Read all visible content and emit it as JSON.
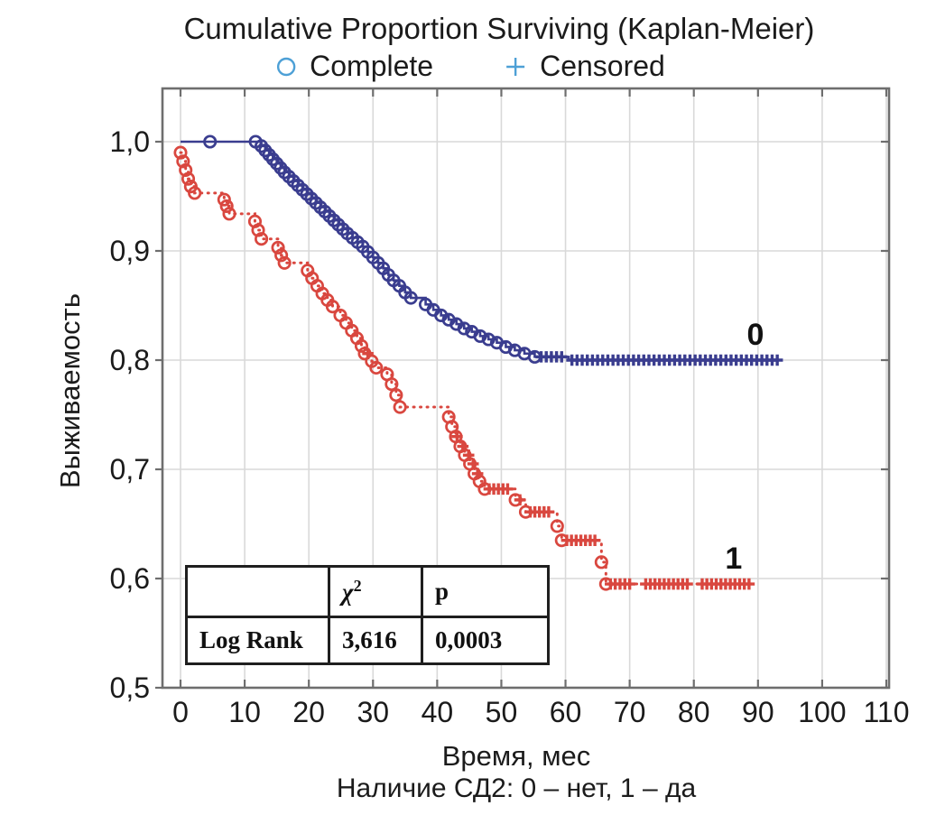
{
  "page": {
    "background": "#ffffff"
  },
  "header": {
    "title": "Cumulative Proportion Surviving (Kaplan-Meier)",
    "legend_symbol_color": "#4da0d6"
  },
  "chart_data": {
    "type": "line",
    "subtype": "kaplan-meier-step-function",
    "title": "Cumulative Proportion Surviving (Kaplan-Meier)",
    "xlabel": "Время, мес",
    "ylabel": "Выживаемость",
    "caption": "Наличие СД2: 0 – нет, 1 – да",
    "legend": [
      {
        "symbol": "circle",
        "label": "Complete"
      },
      {
        "symbol": "plus",
        "label": "Censored"
      }
    ],
    "grid": true,
    "xlim": [
      -2.8,
      110.4
    ],
    "ylim": [
      0.5,
      1.049
    ],
    "x_ticks": [
      0,
      10,
      20,
      30,
      40,
      50,
      60,
      70,
      80,
      90,
      100,
      110
    ],
    "y_ticks": [
      {
        "value": 1.0,
        "label": "1,0"
      },
      {
        "value": 0.9,
        "label": "0,9"
      },
      {
        "value": 0.8,
        "label": "0,8"
      },
      {
        "value": 0.7,
        "label": "0,7"
      },
      {
        "value": 0.6,
        "label": "0,6"
      },
      {
        "value": 0.5,
        "label": "0,5"
      }
    ],
    "colors": {
      "grid": "#d9d9d9",
      "frame": "#6e6e6e",
      "text": "#1b1b1b"
    },
    "series": [
      {
        "name": "0",
        "group_label": "0",
        "meaning": "СД2 нет",
        "color": "#3a3d8f",
        "line_style": "solid",
        "label_pos": {
          "t": 89.6,
          "s": 0.814
        },
        "end_time": 93,
        "markers_from_t": 12.5,
        "markers_until_t": 55.4,
        "extra_markers": [
          [
            4.6,
            1.0
          ],
          [
            11.7,
            1.0
          ]
        ],
        "steps": [
          [
            0,
            1.0
          ],
          [
            12.6,
            0.996
          ],
          [
            13.2,
            0.992
          ],
          [
            13.8,
            0.988
          ],
          [
            14.4,
            0.984
          ],
          [
            15.0,
            0.98
          ],
          [
            15.6,
            0.976
          ],
          [
            16.2,
            0.972
          ],
          [
            16.9,
            0.968
          ],
          [
            17.6,
            0.964
          ],
          [
            18.3,
            0.96
          ],
          [
            19.0,
            0.956
          ],
          [
            19.7,
            0.952
          ],
          [
            20.4,
            0.948
          ],
          [
            21.1,
            0.944
          ],
          [
            21.8,
            0.94
          ],
          [
            22.5,
            0.936
          ],
          [
            23.2,
            0.932
          ],
          [
            23.9,
            0.928
          ],
          [
            24.6,
            0.924
          ],
          [
            25.3,
            0.92
          ],
          [
            26.0,
            0.916
          ],
          [
            26.8,
            0.912
          ],
          [
            27.6,
            0.908
          ],
          [
            28.4,
            0.904
          ],
          [
            29.2,
            0.899
          ],
          [
            30.0,
            0.894
          ],
          [
            30.8,
            0.889
          ],
          [
            31.6,
            0.884
          ],
          [
            32.4,
            0.878
          ],
          [
            33.2,
            0.873
          ],
          [
            34.1,
            0.868
          ],
          [
            35.0,
            0.862
          ],
          [
            35.9,
            0.857
          ],
          [
            38.2,
            0.851
          ],
          [
            39.4,
            0.846
          ],
          [
            40.6,
            0.841
          ],
          [
            41.8,
            0.837
          ],
          [
            43.0,
            0.833
          ],
          [
            44.2,
            0.829
          ],
          [
            45.4,
            0.826
          ],
          [
            46.7,
            0.822
          ],
          [
            48.0,
            0.819
          ],
          [
            49.3,
            0.816
          ],
          [
            50.7,
            0.812
          ],
          [
            52.1,
            0.809
          ],
          [
            53.6,
            0.806
          ],
          [
            55.2,
            0.803
          ],
          [
            60.5,
            0.8
          ]
        ],
        "censored": [
          [
            56.2,
            0.803
          ],
          [
            57.0,
            0.803
          ],
          [
            57.8,
            0.803
          ],
          [
            58.6,
            0.803
          ],
          [
            59.4,
            0.803
          ],
          {
            "from": 61.0,
            "to": 93.0,
            "step": 0.8,
            "level": 0.8
          }
        ]
      },
      {
        "name": "1",
        "group_label": "1",
        "meaning": "СД2 да",
        "color": "#d9473f",
        "line_style": "dotted",
        "label_pos": {
          "t": 86.2,
          "s": 0.609
        },
        "end_time": 89,
        "markers_from_t": 0,
        "markers_until_t": 66.4,
        "extra_markers": [],
        "steps": [
          [
            0,
            0.99
          ],
          [
            0.4,
            0.982
          ],
          [
            0.8,
            0.974
          ],
          [
            1.2,
            0.966
          ],
          [
            1.6,
            0.959
          ],
          [
            2.2,
            0.953
          ],
          [
            6.8,
            0.947
          ],
          [
            7.2,
            0.941
          ],
          [
            7.6,
            0.934
          ],
          [
            11.6,
            0.927
          ],
          [
            12.1,
            0.919
          ],
          [
            12.6,
            0.911
          ],
          [
            15.2,
            0.903
          ],
          [
            15.7,
            0.896
          ],
          [
            16.2,
            0.889
          ],
          [
            19.8,
            0.882
          ],
          [
            20.5,
            0.875
          ],
          [
            21.3,
            0.868
          ],
          [
            22.1,
            0.861
          ],
          [
            22.9,
            0.855
          ],
          [
            23.7,
            0.849
          ],
          [
            24.9,
            0.841
          ],
          [
            25.8,
            0.834
          ],
          [
            26.7,
            0.827
          ],
          [
            27.5,
            0.82
          ],
          [
            28.2,
            0.813
          ],
          [
            28.7,
            0.806
          ],
          [
            29.8,
            0.799
          ],
          [
            30.5,
            0.793
          ],
          [
            32.2,
            0.787
          ],
          [
            32.9,
            0.778
          ],
          [
            33.6,
            0.768
          ],
          [
            34.2,
            0.757
          ],
          [
            41.8,
            0.748
          ],
          [
            42.3,
            0.739
          ],
          [
            42.9,
            0.73
          ],
          [
            43.6,
            0.721
          ],
          [
            44.3,
            0.713
          ],
          [
            45.1,
            0.705
          ],
          [
            45.8,
            0.696
          ],
          [
            46.6,
            0.689
          ],
          [
            47.4,
            0.682
          ],
          [
            52.2,
            0.672
          ],
          [
            53.8,
            0.661
          ],
          [
            58.7,
            0.648
          ],
          [
            59.4,
            0.635
          ],
          [
            65.6,
            0.615
          ],
          [
            66.3,
            0.595
          ]
        ],
        "censored": [
          [
            29.2,
            0.806
          ],
          [
            43.1,
            0.73
          ],
          [
            44.0,
            0.721
          ],
          [
            44.9,
            0.713
          ],
          [
            45.6,
            0.705
          ],
          [
            46.3,
            0.696
          ],
          [
            52.9,
            0.672
          ],
          {
            "from": 48.1,
            "to": 51.0,
            "step": 0.72,
            "level": 0.682
          },
          {
            "from": 54.5,
            "to": 57.4,
            "step": 0.72,
            "level": 0.661
          },
          {
            "from": 60.2,
            "to": 64.6,
            "step": 0.73,
            "level": 0.635
          },
          {
            "from": 67.0,
            "to": 70.0,
            "step": 0.75,
            "level": 0.595
          },
          {
            "from": 72.5,
            "to": 79.0,
            "step": 0.72,
            "level": 0.595
          },
          {
            "from": 81.3,
            "to": 88.6,
            "step": 0.73,
            "level": 0.595
          }
        ]
      }
    ],
    "stats_table": {
      "col_headers": {
        "stat": "",
        "chi": "χ",
        "chi_sup": "2",
        "p": "p"
      },
      "row": {
        "label": "Log Rank",
        "chi_value": "3,616",
        "p_value": "0,0003"
      }
    }
  }
}
